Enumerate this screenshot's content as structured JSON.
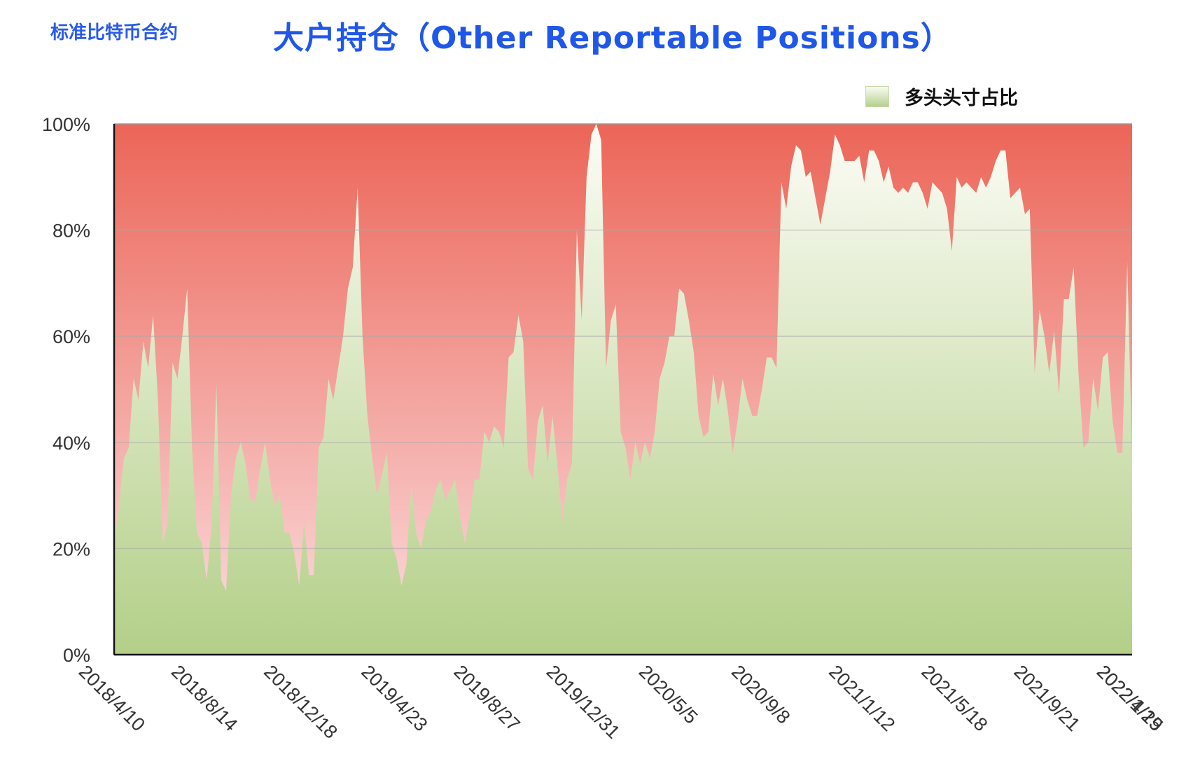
{
  "subtitle": "标准比特币合约",
  "title": "大户持仓（Other Reportable Positions）",
  "legend": {
    "label": "多头头寸占比"
  },
  "colors": {
    "short_top": "#ec6558",
    "short_bottom": "#fbe0e2",
    "long_top": "#fcfcf6",
    "long_bottom": "#b3cf88",
    "title": "#1f57e8"
  },
  "chart_data": {
    "type": "area",
    "title": "大户持仓（Other Reportable Positions）",
    "xlabel": "",
    "ylabel": "",
    "ylim": [
      0,
      100
    ],
    "yticks": [
      "0%",
      "20%",
      "40%",
      "60%",
      "80%",
      "100%"
    ],
    "xtick_labels": [
      "2018/4/10",
      "2018/8/14",
      "2018/12/18",
      "2019/4/23",
      "2019/8/27",
      "2019/12/31",
      "2020/5/5",
      "2020/9/8",
      "2021/1/12",
      "2021/5/18",
      "2021/9/21",
      "2022/1/25",
      "2022/4/19"
    ],
    "grid": true,
    "legend_position": "top-right",
    "series": [
      {
        "name": "多头头寸占比",
        "values": [
          21,
          28,
          37,
          39,
          52,
          48,
          59,
          54,
          64,
          48,
          21,
          25,
          55,
          52,
          60,
          69,
          39,
          23,
          21,
          14,
          24,
          51,
          14,
          12,
          30,
          37,
          40,
          36,
          29,
          29,
          35,
          40,
          33,
          28,
          30,
          23,
          23,
          19,
          13,
          25,
          15,
          15,
          39,
          41,
          52,
          48,
          54,
          60,
          69,
          73,
          88,
          60,
          45,
          37,
          30,
          34,
          38,
          21,
          18,
          13,
          17,
          32,
          23,
          20,
          25,
          27,
          31,
          33,
          29,
          31,
          33,
          26,
          21,
          26,
          33,
          33,
          42,
          40,
          43,
          42,
          39,
          56,
          57,
          64,
          59,
          35,
          33,
          44,
          47,
          36,
          45,
          36,
          25,
          33,
          36,
          80,
          63,
          90,
          98,
          100,
          97,
          54,
          63,
          66,
          42,
          39,
          33,
          40,
          36,
          40,
          37,
          42,
          52,
          55,
          60,
          60,
          69,
          68,
          63,
          57,
          45,
          41,
          42,
          53,
          47,
          52,
          46,
          38,
          44,
          52,
          48,
          45,
          45,
          50,
          56,
          56,
          54,
          89,
          84,
          92,
          96,
          95,
          90,
          91,
          86,
          81,
          86,
          91,
          98,
          96,
          93,
          93,
          93,
          94,
          89,
          95,
          95,
          93,
          89,
          92,
          88,
          87,
          88,
          87,
          89,
          89,
          87,
          84,
          89,
          88,
          87,
          84,
          76,
          90,
          88,
          89,
          88,
          87,
          90,
          88,
          90,
          93,
          95,
          95,
          86,
          87,
          88,
          83,
          84,
          53,
          65,
          60,
          53,
          61,
          49,
          67,
          67,
          73,
          53,
          39,
          40,
          52,
          46,
          56,
          57,
          44,
          38,
          38,
          74,
          38
        ]
      }
    ]
  }
}
